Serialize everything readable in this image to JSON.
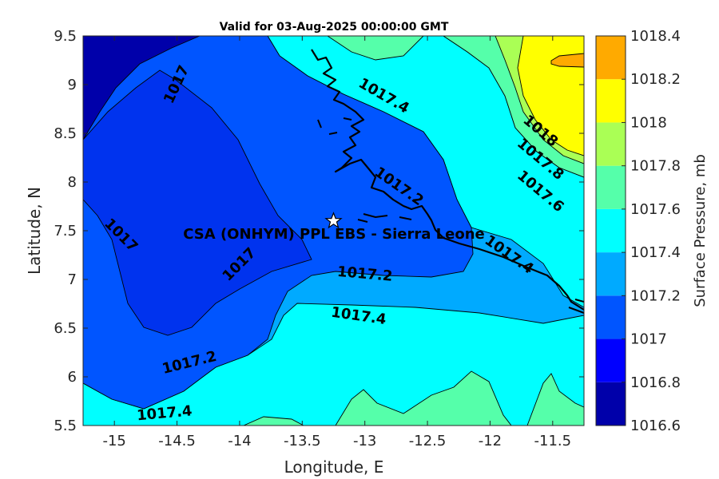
{
  "title": "Valid for 03-Aug-2025 00:00:00 GMT",
  "x_axis": {
    "label": "Longitude, E",
    "range": [
      -15.25,
      -11.25
    ],
    "ticks": [
      -15,
      -14.5,
      -14,
      -13.5,
      -13,
      -12.5,
      -12,
      -11.5
    ],
    "tick_labels": [
      "-15",
      "-14.5",
      "-14",
      "-13.5",
      "-13",
      "-12.5",
      "-12",
      "-11.5"
    ]
  },
  "y_axis": {
    "label": "Latitude, N",
    "range": [
      5.5,
      9.5
    ],
    "ticks": [
      5.5,
      6,
      6.5,
      7,
      7.5,
      8,
      8.5,
      9,
      9.5
    ],
    "tick_labels": [
      "5.5",
      "6",
      "6.5",
      "7",
      "7.5",
      "8",
      "8.5",
      "9",
      "9.5"
    ]
  },
  "colorbar": {
    "label": "Surface Pressure, mb",
    "levels": [
      1016.6,
      1016.8,
      1017.0,
      1017.2,
      1017.4,
      1017.6,
      1017.8,
      1018.0,
      1018.2,
      1018.4
    ],
    "tick_labels": [
      "1016.6",
      "1016.8",
      "1017",
      "1017.2",
      "1017.4",
      "1017.6",
      "1017.8",
      "1018",
      "1018.2",
      "1018.4"
    ],
    "colors": [
      "#0000aa",
      "#0000ff",
      "#0055ff",
      "#00aaff",
      "#00ffff",
      "#55ffaa",
      "#aaff55",
      "#ffff00",
      "#ffaa00",
      "#ff5500"
    ]
  },
  "site": {
    "name": "CSA (ONHYM) PPL EBS  - Sierra Leone",
    "lon": -13.25,
    "lat": 7.6,
    "marker": "white-star"
  },
  "contour_labels": [
    {
      "text": "1017",
      "lon": -14.5,
      "lat": 9.0,
      "angle": -65
    },
    {
      "text": "1017",
      "lon": -14.95,
      "lat": 7.45,
      "angle": 45
    },
    {
      "text": "1017",
      "lon": -14.0,
      "lat": 7.15,
      "angle": -45
    },
    {
      "text": "1017.2",
      "lon": -14.4,
      "lat": 6.14,
      "angle": -14
    },
    {
      "text": "1017.4",
      "lon": -14.6,
      "lat": 5.62,
      "angle": -5
    },
    {
      "text": "1017.4",
      "lon": -12.85,
      "lat": 8.88,
      "angle": 30
    },
    {
      "text": "1017.2",
      "lon": -12.73,
      "lat": 7.95,
      "angle": 35
    },
    {
      "text": "1017.2",
      "lon": -13.0,
      "lat": 7.05,
      "angle": 5
    },
    {
      "text": "1017.4",
      "lon": -13.05,
      "lat": 6.62,
      "angle": 8
    },
    {
      "text": "1017.4",
      "lon": -11.85,
      "lat": 7.25,
      "angle": 35
    },
    {
      "text": "1018",
      "lon": -11.6,
      "lat": 8.52,
      "angle": 40
    },
    {
      "text": "1017.8",
      "lon": -11.6,
      "lat": 8.23,
      "angle": 40
    },
    {
      "text": "1017.6",
      "lon": -11.6,
      "lat": 7.9,
      "angle": 40
    }
  ],
  "chart_data": {
    "type": "filled-contour-map",
    "title": "Valid for 03-Aug-2025 00:00:00 GMT",
    "xlabel": "Longitude, E",
    "ylabel": "Latitude, N",
    "xlim": [
      -15.25,
      -11.25
    ],
    "ylim": [
      5.5,
      9.5
    ],
    "variable": "Surface Pressure, mb",
    "levels": [
      1016.6,
      1016.8,
      1017.0,
      1017.2,
      1017.4,
      1017.6,
      1017.8,
      1018.0,
      1018.2,
      1018.4
    ],
    "grid": false,
    "legend": "colorbar-right",
    "contour_line_labels": [
      "1017",
      "1017",
      "1017",
      "1017.2",
      "1017.4",
      "1017.4",
      "1017.2",
      "1017.2",
      "1017.4",
      "1017.4",
      "1018",
      "1017.8",
      "1017.6"
    ],
    "marker": {
      "name": "CSA (ONHYM) PPL EBS  - Sierra Leone",
      "lon": -13.25,
      "lat": 7.6
    }
  }
}
